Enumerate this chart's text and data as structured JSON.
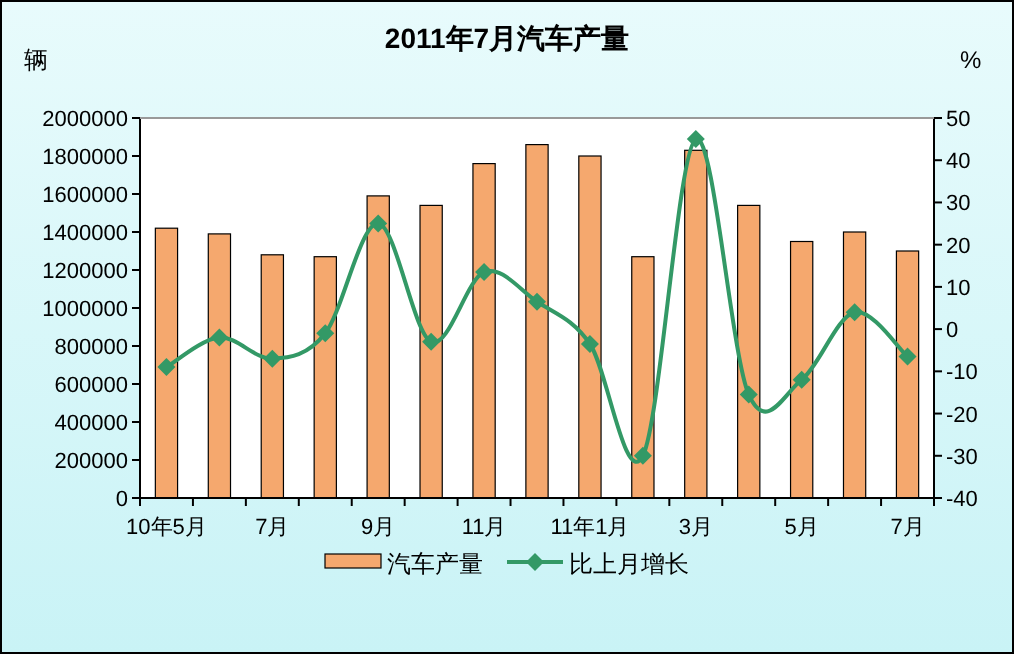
{
  "chart_data": {
    "type": "bar",
    "title": "2011年7月汽车产量",
    "ylabel": "辆",
    "y2label": "%",
    "categories": [
      "10年5月",
      null,
      "7月",
      null,
      "9月",
      null,
      "11月",
      null,
      "11年1月",
      null,
      "3月",
      null,
      "5月",
      null,
      "7月"
    ],
    "series": [
      {
        "name": "汽车产量",
        "color": "#f5a86e",
        "values": [
          1420000,
          1390000,
          1280000,
          1270000,
          1590000,
          1540000,
          1760000,
          1860000,
          1800000,
          1270000,
          1830000,
          1540000,
          1350000,
          1400000,
          1300000
        ]
      },
      {
        "name": "比上月增长",
        "type": "line",
        "axis": "y2",
        "color": "#339966",
        "values": [
          -9,
          -2,
          -7,
          -1,
          25,
          -3,
          13.5,
          6.5,
          -3.5,
          -30,
          45,
          -15.5,
          -12,
          4,
          -6.5
        ]
      }
    ],
    "ylim": [
      0,
      2000000
    ],
    "yticks": [
      0,
      200000,
      400000,
      600000,
      800000,
      1000000,
      1200000,
      1400000,
      1600000,
      1800000,
      2000000
    ],
    "y2lim": [
      -40,
      50
    ],
    "y2ticks": [
      -40,
      -30,
      -20,
      -10,
      0,
      10,
      20,
      30,
      40,
      50
    ],
    "marker": "diamond",
    "legend": "bottom"
  }
}
